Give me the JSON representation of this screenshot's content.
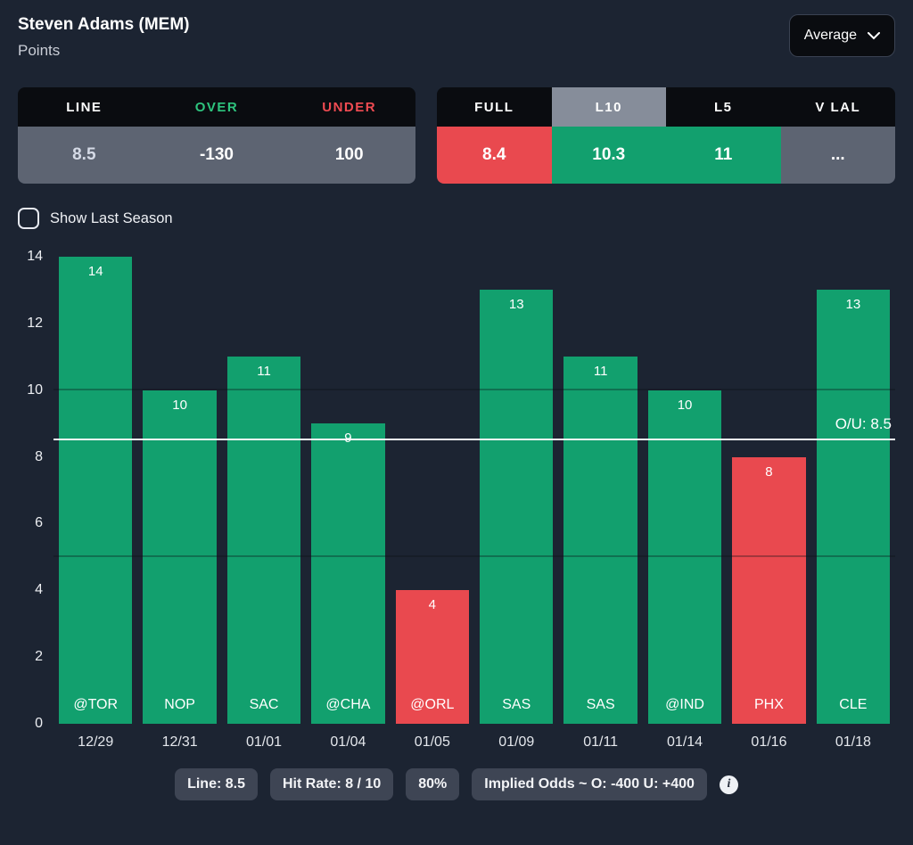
{
  "header": {
    "player": "Steven Adams (MEM)",
    "stat": "Points",
    "average_selector": "Average"
  },
  "odds_table": {
    "headers": {
      "line": "LINE",
      "over": "OVER",
      "under": "UNDER"
    },
    "values": {
      "line": "8.5",
      "over": "-130",
      "under": "100"
    }
  },
  "splits_table": {
    "columns": [
      {
        "label": "FULL",
        "value": "8.4",
        "status": "under",
        "selected": false
      },
      {
        "label": "L10",
        "value": "10.3",
        "status": "over",
        "selected": true
      },
      {
        "label": "L5",
        "value": "11",
        "status": "over",
        "selected": false
      },
      {
        "label": "V LAL",
        "value": "...",
        "status": "neutral",
        "selected": false
      }
    ]
  },
  "controls": {
    "show_last_season_label": "Show Last Season",
    "checked": false
  },
  "chart_data": {
    "type": "bar",
    "title": "",
    "x": [
      "12/29",
      "12/31",
      "01/01",
      "01/04",
      "01/05",
      "01/09",
      "01/11",
      "01/14",
      "01/16",
      "01/18"
    ],
    "opponents": [
      "@TOR",
      "NOP",
      "SAC",
      "@CHA",
      "@ORL",
      "SAS",
      "SAS",
      "@IND",
      "PHX",
      "CLE"
    ],
    "values": [
      14,
      10,
      11,
      9,
      4,
      13,
      11,
      10,
      8,
      13
    ],
    "over_under_line": 8.5,
    "line_label": "O/U: 8.5",
    "ylim": [
      0,
      14
    ],
    "yticks": [
      0,
      2,
      4,
      6,
      8,
      10,
      12,
      14
    ],
    "inner_gridlines": [
      5,
      10
    ],
    "colors": {
      "over": "#12a06e",
      "under": "#e9494f",
      "line": "#f7f8fa"
    }
  },
  "footer": {
    "chips": [
      "Line: 8.5",
      "Hit Rate: 8 / 10",
      "80%",
      "Implied Odds ~ O: -400 U: +400"
    ],
    "info_icon": "info-icon"
  }
}
